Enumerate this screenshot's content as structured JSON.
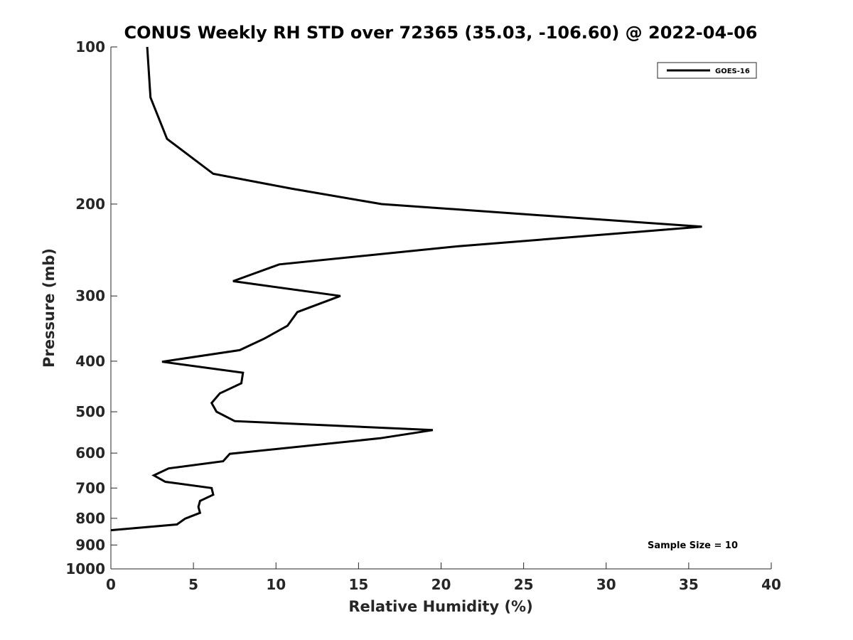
{
  "chart_data": {
    "type": "line",
    "title": "CONUS Weekly RH STD over 72365 (35.03, -106.60) @ 2022-04-06",
    "xlabel": "Relative Humidity (%)",
    "ylabel": "Pressure (mb)",
    "xlim": [
      0,
      40
    ],
    "ylim": [
      100,
      1000
    ],
    "y_scale": "log",
    "y_reversed": true,
    "x_ticks": [
      0,
      5,
      10,
      15,
      20,
      25,
      30,
      35,
      40
    ],
    "y_ticks": [
      100,
      200,
      300,
      400,
      500,
      600,
      700,
      800,
      900,
      1000
    ],
    "grid": false,
    "legend_position": "top-right",
    "annotation": "Sample Size = 10",
    "series": [
      {
        "name": "GOES-16",
        "color": "#000000",
        "points": [
          {
            "x": 2.2,
            "y": 100
          },
          {
            "x": 2.4,
            "y": 125
          },
          {
            "x": 3.4,
            "y": 150
          },
          {
            "x": 6.2,
            "y": 175
          },
          {
            "x": 11.0,
            "y": 187
          },
          {
            "x": 16.4,
            "y": 200
          },
          {
            "x": 35.8,
            "y": 221
          },
          {
            "x": 21.0,
            "y": 241
          },
          {
            "x": 10.2,
            "y": 261
          },
          {
            "x": 7.4,
            "y": 281
          },
          {
            "x": 13.9,
            "y": 300
          },
          {
            "x": 11.3,
            "y": 322
          },
          {
            "x": 10.7,
            "y": 342
          },
          {
            "x": 9.3,
            "y": 362
          },
          {
            "x": 7.8,
            "y": 381
          },
          {
            "x": 3.1,
            "y": 401
          },
          {
            "x": 8.0,
            "y": 421
          },
          {
            "x": 7.9,
            "y": 441
          },
          {
            "x": 6.6,
            "y": 461
          },
          {
            "x": 6.1,
            "y": 481
          },
          {
            "x": 6.4,
            "y": 500
          },
          {
            "x": 7.5,
            "y": 521
          },
          {
            "x": 19.5,
            "y": 542
          },
          {
            "x": 16.3,
            "y": 562
          },
          {
            "x": 7.2,
            "y": 602
          },
          {
            "x": 6.8,
            "y": 622
          },
          {
            "x": 3.5,
            "y": 642
          },
          {
            "x": 2.6,
            "y": 662
          },
          {
            "x": 3.3,
            "y": 681
          },
          {
            "x": 6.1,
            "y": 700
          },
          {
            "x": 6.2,
            "y": 721
          },
          {
            "x": 5.4,
            "y": 741
          },
          {
            "x": 5.3,
            "y": 761
          },
          {
            "x": 5.4,
            "y": 781
          },
          {
            "x": 4.5,
            "y": 801
          },
          {
            "x": 4.0,
            "y": 822
          },
          {
            "x": 0.0,
            "y": 843
          }
        ]
      }
    ]
  }
}
